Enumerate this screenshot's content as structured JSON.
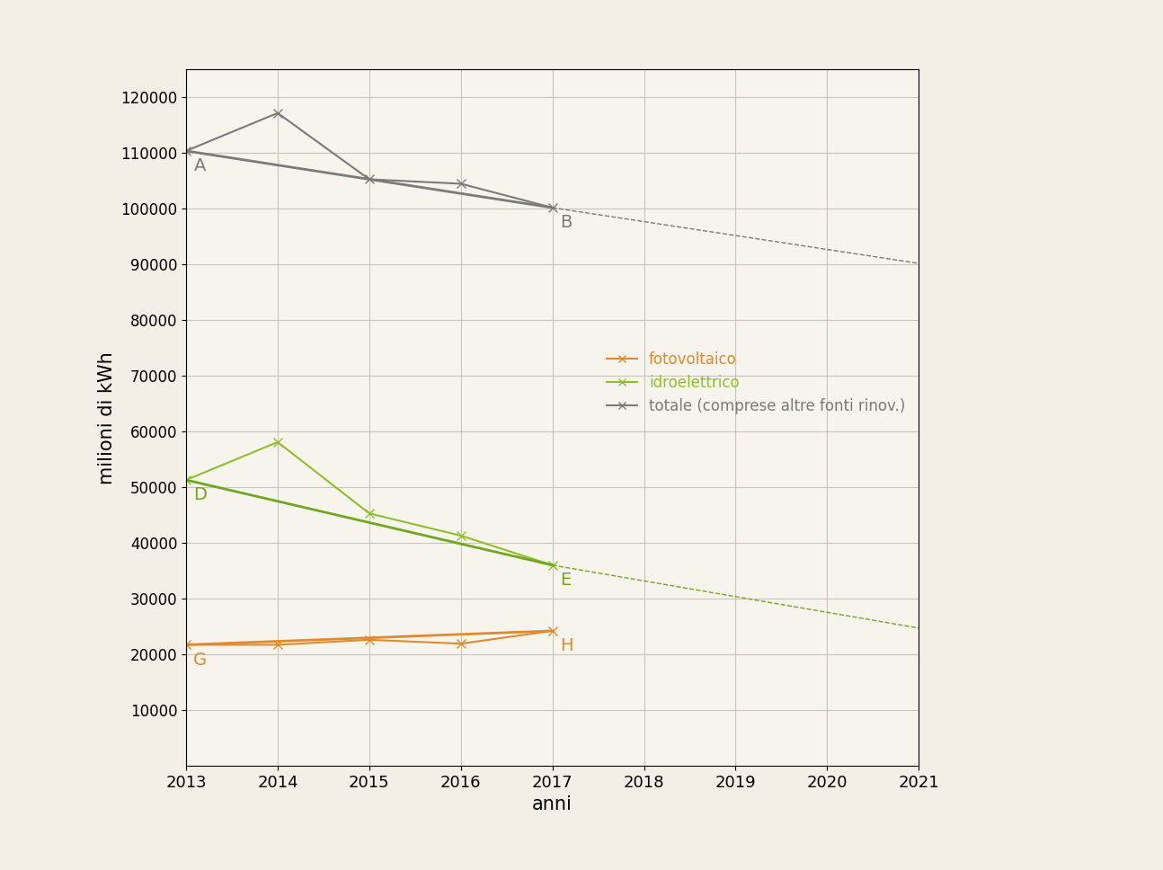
{
  "chart_data": {
    "type": "line",
    "x_label": "anni",
    "y_label": "milioni di kWh",
    "x": [
      2013,
      2014,
      2015,
      2016,
      2017
    ],
    "series": [
      {
        "name": "fotovoltaico",
        "color": "#e08a2c",
        "marker": "x",
        "line_style": "solid",
        "values": [
          21700,
          21700,
          22600,
          21900,
          24200
        ]
      },
      {
        "name": "idroelettrico",
        "color": "#8fbf2a",
        "marker": "x",
        "line_style": "solid",
        "values": [
          51300,
          58100,
          45300,
          41300,
          36000
        ]
      },
      {
        "name": "totale (comprese altre fonti rinov.)",
        "color": "#7a7a7a",
        "marker": "x",
        "line_style": "solid",
        "values": [
          110400,
          117200,
          105300,
          104500,
          100200
        ]
      }
    ],
    "trend_lines": [
      {
        "color": "#7a7a7a",
        "x": [
          2013,
          2017
        ],
        "values": [
          110400,
          100200
        ],
        "point_labels": [
          "A",
          "B"
        ],
        "extension": {
          "x": [
            2017,
            2021
          ],
          "values": [
            100200,
            90200
          ],
          "line_style": "dashed"
        }
      },
      {
        "color": "#6fa81e",
        "x": [
          2013,
          2017
        ],
        "values": [
          51300,
          36000
        ],
        "point_labels": [
          "D",
          "E"
        ],
        "extension": {
          "x": [
            2017,
            2021
          ],
          "values": [
            36000,
            24700
          ],
          "line_style": "dashed"
        }
      },
      {
        "color": "#e08a2c",
        "x": [
          2013,
          2017
        ],
        "values": [
          21700,
          24200
        ],
        "point_labels": [
          "G",
          "H"
        ]
      }
    ],
    "xlim": [
      2013,
      2021
    ],
    "xticks": [
      2013,
      2014,
      2015,
      2016,
      2017,
      2018,
      2019,
      2020,
      2021
    ],
    "ylim": [
      0,
      125000
    ],
    "yticks": [
      10000,
      20000,
      30000,
      40000,
      50000,
      60000,
      70000,
      80000,
      90000,
      100000,
      110000,
      120000
    ],
    "grid": true,
    "legend": "center right"
  }
}
